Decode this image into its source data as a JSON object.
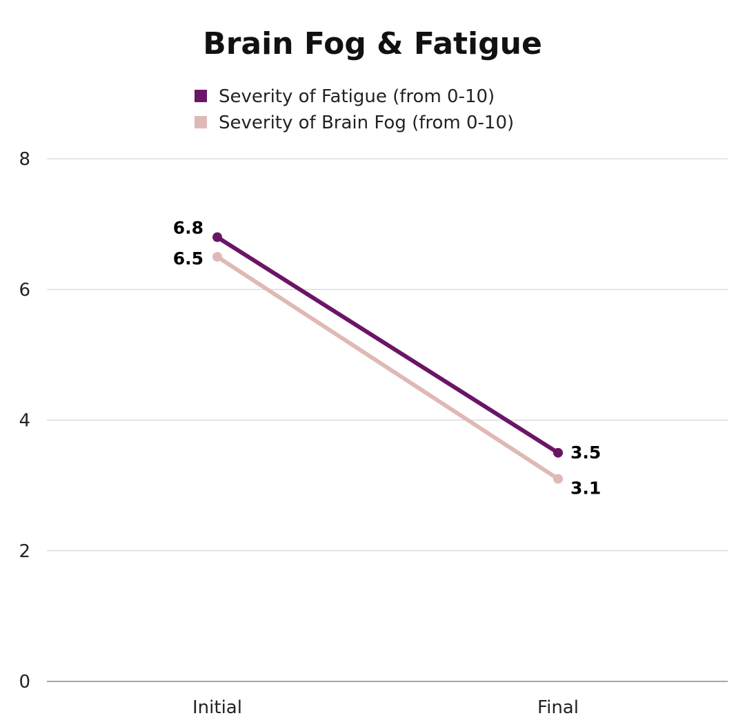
{
  "chart_data": {
    "type": "line",
    "title": "Brain Fog & Fatigue",
    "xlabel": "",
    "ylabel": "",
    "categories": [
      "Initial",
      "Final"
    ],
    "ylim": [
      0,
      8
    ],
    "yticks": [
      0,
      2,
      4,
      6,
      8
    ],
    "grid": true,
    "legend_position": "top-center",
    "series": [
      {
        "name": "Severity of Fatigue (from 0-10)",
        "values": [
          6.8,
          3.5
        ],
        "labels": [
          "6.8",
          "3.5"
        ],
        "color": "#6b1566"
      },
      {
        "name": "Severity of Brain Fog (from 0-10)",
        "values": [
          6.5,
          3.1
        ],
        "labels": [
          "6.5",
          "3.1"
        ],
        "color": "#dfb9b6"
      }
    ]
  }
}
